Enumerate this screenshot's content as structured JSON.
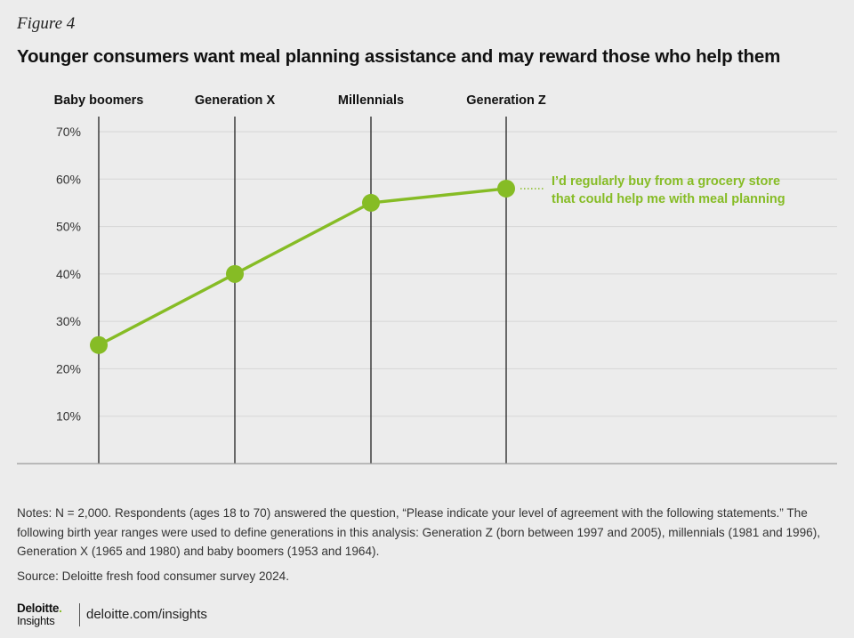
{
  "figure_label": "Figure 4",
  "colors": {
    "series": "#86bc25",
    "axis": "#222222",
    "grid": "#d6d6d6",
    "background": "#ececec"
  },
  "chart_data": {
    "type": "line",
    "title": "Younger consumers want meal planning assistance and may reward those who help them",
    "xlabel": "",
    "ylabel": "",
    "categories": [
      "Baby boomers",
      "Generation X",
      "Millennials",
      "Generation Z"
    ],
    "ylim": [
      0,
      70
    ],
    "yticks": [
      10,
      20,
      30,
      40,
      50,
      60,
      70
    ],
    "ytick_labels": [
      "10%",
      "20%",
      "30%",
      "40%",
      "50%",
      "60%",
      "70%"
    ],
    "series": [
      {
        "name": "I'd regularly buy from a grocery store that could help me with meal planning",
        "label_lines": [
          "I’d regularly buy from a grocery store",
          "that could help me with meal planning"
        ],
        "values": [
          25,
          40,
          55,
          58
        ]
      }
    ]
  },
  "notes": "Notes: N = 2,000. Respondents (ages 18 to 70) answered the question, “Please indicate your level of agreement with the following statements.” The following birth year ranges were used to define generations in this analysis: Generation Z (born between 1997 and 2005), millennials (1981 and 1996), Generation X (1965 and 1980) and baby boomers (1953 and 1964).",
  "source": "Source: Deloitte fresh food consumer survey 2024.",
  "footer": {
    "brand_top": "Deloitte",
    "brand_dot": ".",
    "brand_bottom": "Insights",
    "link": "deloitte.com/insights"
  }
}
